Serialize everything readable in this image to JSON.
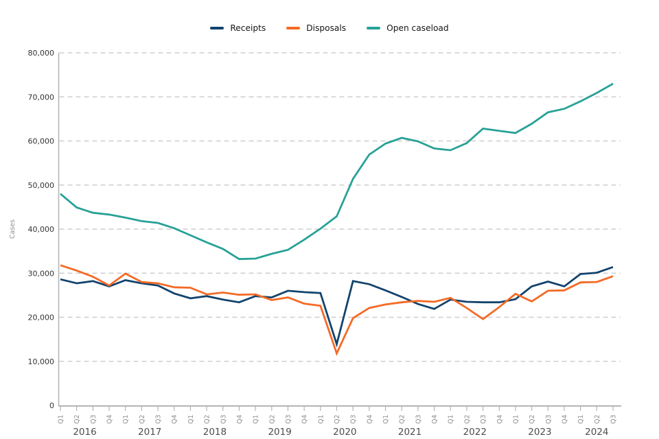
{
  "chart_data": {
    "type": "line",
    "title": "",
    "ylabel": "Cases",
    "ylim": [
      0,
      80000
    ],
    "y_tick_interval": 10000,
    "y_tick_labels": [
      "0",
      "10,000",
      "20,000",
      "30,000",
      "40,000",
      "50,000",
      "60,000",
      "70,000",
      "80,000"
    ],
    "grid": "horizontal-dashed",
    "legend_position": "top-center",
    "x": [
      "2016 Q1",
      "2016 Q2",
      "2016 Q3",
      "2016 Q4",
      "2017 Q1",
      "2017 Q2",
      "2017 Q3",
      "2017 Q4",
      "2018 Q1",
      "2018 Q2",
      "2018 Q3",
      "2018 Q4",
      "2019 Q1",
      "2019 Q2",
      "2019 Q3",
      "2019 Q4",
      "2020 Q1",
      "2020 Q2",
      "2020 Q3",
      "2020 Q4",
      "2021 Q1",
      "2021 Q2",
      "2021 Q3",
      "2021 Q4",
      "2022 Q1",
      "2022 Q2",
      "2022 Q3",
      "2022 Q4",
      "2023 Q1",
      "2023 Q2",
      "2023 Q3",
      "2023 Q4",
      "2024 Q1",
      "2024 Q2",
      "2024 Q3"
    ],
    "x_tick_labels": [
      "Q1",
      "Q2",
      "Q3",
      "Q4",
      "Q1",
      "Q2",
      "Q3",
      "Q4",
      "Q1",
      "Q2",
      "Q3",
      "Q4",
      "Q1",
      "Q2",
      "Q3",
      "Q4",
      "Q1",
      "Q2",
      "Q3",
      "Q4",
      "Q1",
      "Q2",
      "Q3",
      "Q4",
      "Q1",
      "Q2",
      "Q3",
      "Q4",
      "Q1",
      "Q2",
      "Q3",
      "Q4",
      "Q1",
      "Q2",
      "Q3"
    ],
    "x_year_labels": [
      "2016",
      "2017",
      "2018",
      "2019",
      "2020",
      "2021",
      "2022",
      "2023",
      "2024"
    ],
    "series": [
      {
        "name": "Receipts",
        "color": "#12436D",
        "values": [
          28600,
          27700,
          28200,
          27000,
          28400,
          27700,
          27200,
          25400,
          24300,
          24800,
          24000,
          23400,
          24800,
          24500,
          26000,
          25700,
          25500,
          13900,
          28200,
          27500,
          26100,
          24600,
          23000,
          21900,
          24000,
          23500,
          23400,
          23400,
          24100,
          27000,
          28100,
          27000,
          29800,
          30100,
          31400
        ]
      },
      {
        "name": "Disposals",
        "color": "#F46A25",
        "values": [
          31800,
          30600,
          29200,
          27200,
          29900,
          28000,
          27700,
          26800,
          26700,
          25200,
          25600,
          25100,
          25200,
          23900,
          24500,
          23100,
          22600,
          11800,
          19800,
          22100,
          22900,
          23400,
          23700,
          23500,
          24400,
          22100,
          19600,
          22300,
          25300,
          23600,
          26000,
          26100,
          27900,
          28000,
          29300
        ]
      },
      {
        "name": "Open caseload",
        "color": "#28A197",
        "values": [
          48000,
          44900,
          43700,
          43300,
          42600,
          41800,
          41400,
          40200,
          38600,
          37000,
          35500,
          33200,
          33300,
          34400,
          35300,
          37600,
          40100,
          42900,
          51400,
          56900,
          59400,
          60700,
          59900,
          58300,
          57900,
          59500,
          62800,
          62300,
          61800,
          63900,
          66500,
          67300,
          69000,
          70900,
          73000
        ]
      }
    ]
  }
}
